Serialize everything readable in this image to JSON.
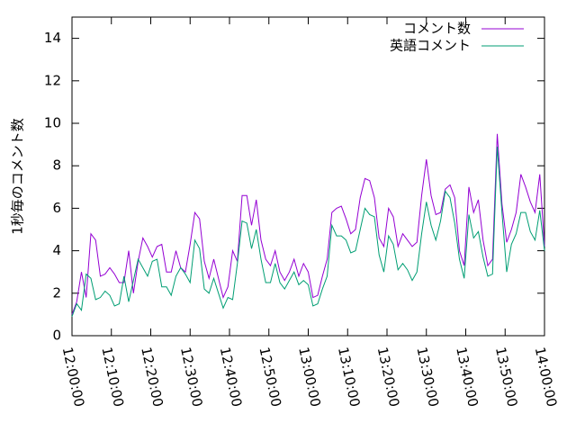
{
  "chart_data": {
    "type": "line",
    "ylabel": "1秒毎のコメント数",
    "ylim": [
      0,
      15
    ],
    "yticks": [
      0,
      2,
      4,
      6,
      8,
      10,
      12,
      14
    ],
    "xlim": [
      "12:00:00",
      "14:00:00"
    ],
    "xticks": [
      "12:00:00",
      "12:10:00",
      "12:20:00",
      "12:30:00",
      "12:40:00",
      "12:50:00",
      "13:00:00",
      "13:10:00",
      "13:20:00",
      "13:30:00",
      "13:40:00",
      "13:50:00",
      "14:00:00"
    ],
    "legend": "upper right",
    "x": [
      "12:00:00",
      "12:01:12",
      "12:02:24",
      "12:03:36",
      "12:04:48",
      "12:06:00",
      "12:07:12",
      "12:08:24",
      "12:09:36",
      "12:10:48",
      "12:12:00",
      "12:13:12",
      "12:14:24",
      "12:15:36",
      "12:16:48",
      "12:18:00",
      "12:19:12",
      "12:20:24",
      "12:21:36",
      "12:22:48",
      "12:24:00",
      "12:25:12",
      "12:26:24",
      "12:27:36",
      "12:28:48",
      "12:30:00",
      "12:31:12",
      "12:32:24",
      "12:33:36",
      "12:34:48",
      "12:36:00",
      "12:37:12",
      "12:38:24",
      "12:39:36",
      "12:40:48",
      "12:42:00",
      "12:43:12",
      "12:44:24",
      "12:45:36",
      "12:46:48",
      "12:48:00",
      "12:49:12",
      "12:50:24",
      "12:51:36",
      "12:52:48",
      "12:54:00",
      "12:55:12",
      "12:56:24",
      "12:57:36",
      "12:58:48",
      "13:00:00",
      "13:01:12",
      "13:02:24",
      "13:03:36",
      "13:04:48",
      "13:06:00",
      "13:07:12",
      "13:08:24",
      "13:09:36",
      "13:10:48",
      "13:12:00",
      "13:13:12",
      "13:14:24",
      "13:15:36",
      "13:16:48",
      "13:18:00",
      "13:19:12",
      "13:20:24",
      "13:21:36",
      "13:22:48",
      "13:24:00",
      "13:25:12",
      "13:26:24",
      "13:27:36",
      "13:28:48",
      "13:30:00",
      "13:31:12",
      "13:32:24",
      "13:33:36",
      "13:34:48",
      "13:36:00",
      "13:37:12",
      "13:38:24",
      "13:39:36",
      "13:40:48",
      "13:42:00",
      "13:43:12",
      "13:44:24",
      "13:45:36",
      "13:46:48",
      "13:48:00",
      "13:49:12",
      "13:50:24",
      "13:51:36",
      "13:52:48",
      "13:54:00",
      "13:55:12",
      "13:56:24",
      "13:57:36",
      "13:58:48",
      "14:00:00"
    ],
    "series": [
      {
        "name": "コメント数",
        "color": "#9400d3",
        "values": [
          1.0,
          1.6,
          3.0,
          1.8,
          4.8,
          4.5,
          2.8,
          2.9,
          3.2,
          2.9,
          2.5,
          2.5,
          4.0,
          2.0,
          3.5,
          4.6,
          4.2,
          3.7,
          4.2,
          4.3,
          3.0,
          3.0,
          4.0,
          3.2,
          3.0,
          4.3,
          5.8,
          5.5,
          3.5,
          2.7,
          3.6,
          2.7,
          1.8,
          2.3,
          4.0,
          3.5,
          6.6,
          6.6,
          5.2,
          6.4,
          4.5,
          3.6,
          3.3,
          4.0,
          3.0,
          2.6,
          3.0,
          3.6,
          2.8,
          3.4,
          3.0,
          1.8,
          1.9,
          2.8,
          3.6,
          5.8,
          6.0,
          6.1,
          5.5,
          4.8,
          5.0,
          6.5,
          7.4,
          7.3,
          6.5,
          4.6,
          4.2,
          6.0,
          5.6,
          4.2,
          4.8,
          4.5,
          4.2,
          4.4,
          6.6,
          8.3,
          6.6,
          5.7,
          5.8,
          6.9,
          7.1,
          6.5,
          4.0,
          3.3,
          7.0,
          5.8,
          6.4,
          4.5,
          3.3,
          3.6,
          9.5,
          6.2,
          4.4,
          5.0,
          5.8,
          7.6,
          7.0,
          6.3,
          5.8,
          7.6,
          4.2
        ]
      },
      {
        "name": "英語コメント",
        "color": "#009e73",
        "values": [
          0.9,
          1.5,
          1.2,
          2.9,
          2.7,
          1.7,
          1.8,
          2.1,
          1.9,
          1.4,
          1.5,
          2.8,
          1.6,
          2.6,
          3.6,
          3.2,
          2.8,
          3.5,
          3.6,
          2.3,
          2.3,
          1.9,
          2.8,
          3.2,
          2.9,
          2.5,
          4.5,
          4.1,
          2.2,
          2.0,
          2.7,
          2.0,
          1.3,
          1.8,
          1.7,
          3.4,
          5.4,
          5.3,
          4.1,
          5.0,
          3.6,
          2.5,
          2.5,
          3.4,
          2.5,
          2.2,
          2.6,
          3.0,
          2.4,
          2.6,
          2.4,
          1.4,
          1.5,
          2.2,
          2.8,
          5.2,
          4.7,
          4.7,
          4.5,
          3.9,
          4.0,
          5.0,
          6.0,
          5.7,
          5.6,
          3.8,
          3.0,
          4.7,
          4.3,
          3.1,
          3.4,
          3.1,
          2.6,
          3.0,
          4.8,
          6.3,
          5.2,
          4.5,
          5.4,
          6.8,
          6.5,
          5.3,
          3.6,
          2.7,
          5.7,
          4.6,
          4.9,
          3.7,
          2.8,
          2.9,
          8.9,
          5.8,
          3.0,
          4.3,
          4.8,
          5.8,
          5.8,
          4.9,
          4.5,
          5.9,
          4.0
        ]
      }
    ]
  }
}
